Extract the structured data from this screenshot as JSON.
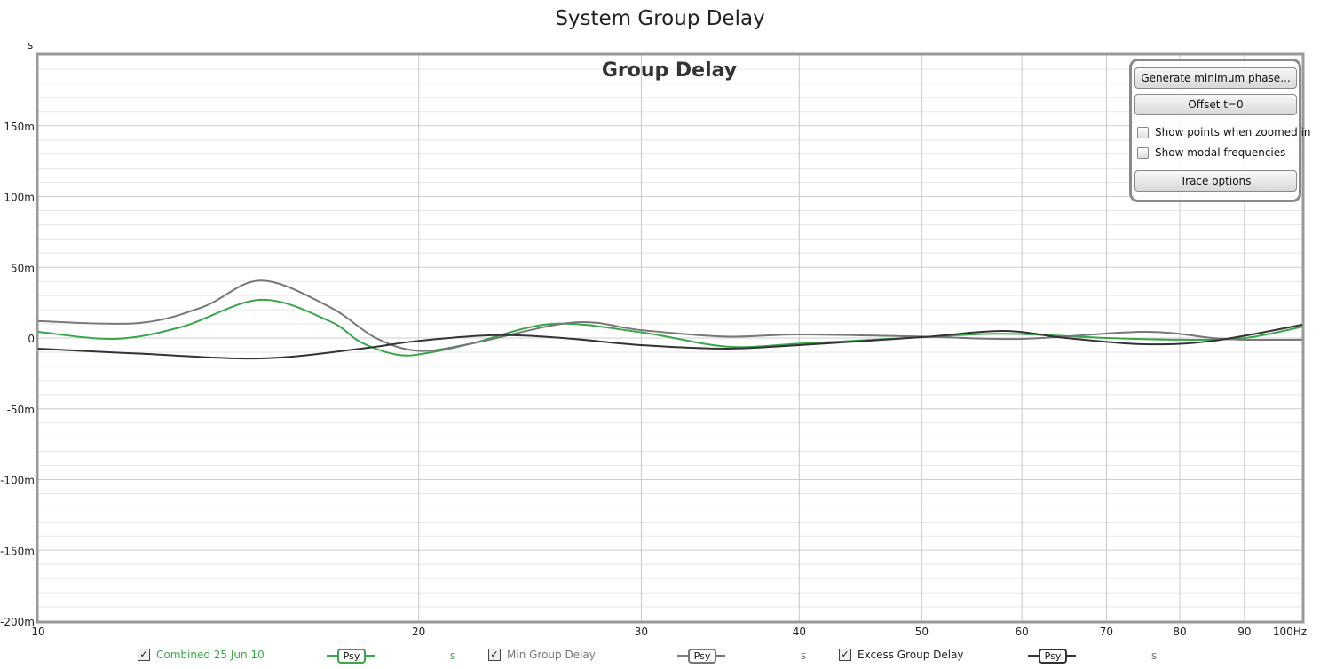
{
  "window_title": "System Group Delay",
  "controls": {
    "generate": "Generate minimum phase...",
    "offset": "Offset t=0",
    "show_points": "Show points when zoomed in",
    "show_modal": "Show modal frequencies",
    "trace_options": "Trace options"
  },
  "legend": [
    {
      "label": "Combined 25 Jun 10",
      "button": "Psy",
      "unit": "s",
      "color": "#3aa64a",
      "checked": true
    },
    {
      "label": "Min Group Delay",
      "button": "Psy",
      "unit": "s",
      "color": "#777777",
      "checked": true
    },
    {
      "label": "Excess Group Delay",
      "button": "Psy",
      "unit": "s",
      "color": "#333333",
      "checked": true
    }
  ],
  "chart_data": {
    "type": "line",
    "title": "Group Delay",
    "ylabel": "s",
    "xlabel": "Hz",
    "x_scale": "log",
    "xlim": [
      10,
      100
    ],
    "ylim": [
      -200,
      200
    ],
    "x_ticks": [
      "10",
      "20",
      "30",
      "40",
      "50",
      "60",
      "70",
      "80",
      "90",
      "100Hz"
    ],
    "x_tick_values": [
      10,
      20,
      30,
      40,
      50,
      60,
      70,
      80,
      90,
      100
    ],
    "y_ticks": [
      "-200m",
      "-150m",
      "-100m",
      "-50m",
      "0",
      "50m",
      "100m",
      "150m"
    ],
    "y_tick_values": [
      -200,
      -150,
      -100,
      -50,
      0,
      50,
      100,
      150
    ],
    "y_units": "ms",
    "grid": true,
    "series": [
      {
        "name": "Combined 25 Jun 10",
        "color": "#3aa64a",
        "x": [
          10,
          11.5,
          13,
          15,
          17,
          18,
          19.3,
          20.5,
          22,
          25.5,
          30,
          35,
          40,
          50,
          58,
          70,
          80,
          90,
          100
        ],
        "y": [
          4.4,
          -0.6,
          8,
          27,
          12,
          -3,
          -12,
          -10,
          -4,
          10,
          4,
          -6,
          -4,
          0.6,
          3,
          0,
          -1.2,
          0,
          8
        ]
      },
      {
        "name": "Min Group Delay",
        "color": "#777777",
        "x": [
          10,
          12,
          13.5,
          15,
          17,
          18.5,
          20,
          22,
          26.5,
          30,
          35,
          40,
          50,
          60,
          75,
          85,
          90,
          100
        ],
        "y": [
          12,
          10.6,
          22,
          40.6,
          22,
          0,
          -9,
          -4,
          11,
          5.6,
          1,
          2.5,
          1,
          -0.6,
          4.4,
          0,
          -1.2,
          -1.2
        ]
      },
      {
        "name": "Excess Group Delay",
        "color": "#333333",
        "x": [
          10,
          12,
          15,
          18,
          20,
          23,
          26,
          30,
          35,
          40,
          50,
          58,
          65,
          75,
          85,
          100
        ],
        "y": [
          -7.5,
          -11,
          -14.4,
          -7.5,
          -2,
          2,
          0,
          -5,
          -7.5,
          -5,
          0.6,
          5,
          0,
          -4.4,
          -2,
          9.4
        ]
      }
    ]
  }
}
